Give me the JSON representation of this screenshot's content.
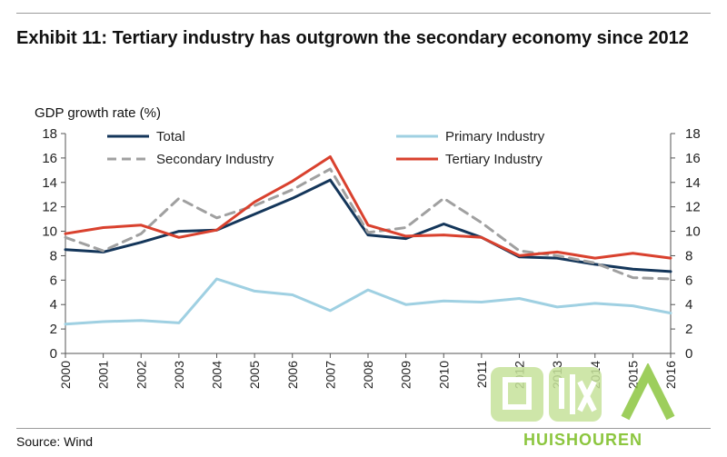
{
  "title": "Exhibit 11: Tertiary industry has outgrown the secondary economy since 2012",
  "source": "Source: Wind",
  "watermark_text": "HUISHOUREN",
  "chart_data": {
    "type": "line",
    "ylabel": "GDP growth rate (%)",
    "xlabel": "",
    "ylim": [
      0,
      18
    ],
    "y_ticks": [
      0,
      2,
      4,
      6,
      8,
      10,
      12,
      14,
      16,
      18
    ],
    "secondary_y_axis": true,
    "grid": false,
    "legend_position": "top",
    "categories": [
      "2000",
      "2001",
      "2002",
      "2003",
      "2004",
      "2005",
      "2006",
      "2007",
      "2008",
      "2009",
      "2010",
      "2011",
      "2012",
      "2013",
      "2014",
      "2015",
      "2016"
    ],
    "series": [
      {
        "name": "Total",
        "color": "#14365a",
        "dash": "solid",
        "values": [
          8.5,
          8.3,
          9.1,
          10.0,
          10.1,
          11.4,
          12.7,
          14.2,
          9.7,
          9.4,
          10.6,
          9.5,
          7.9,
          7.8,
          7.3,
          6.9,
          6.7
        ]
      },
      {
        "name": "Primary Industry",
        "color": "#9fd0e2",
        "dash": "solid",
        "values": [
          2.4,
          2.6,
          2.7,
          2.5,
          6.1,
          5.1,
          4.8,
          3.5,
          5.2,
          4.0,
          4.3,
          4.2,
          4.5,
          3.8,
          4.1,
          3.9,
          3.3
        ]
      },
      {
        "name": "Secondary Industry",
        "color": "#a0a0a0",
        "dash": "dashed",
        "values": [
          9.5,
          8.4,
          9.8,
          12.7,
          11.1,
          12.1,
          13.4,
          15.1,
          9.9,
          10.3,
          12.7,
          10.7,
          8.4,
          8.0,
          7.4,
          6.2,
          6.1
        ]
      },
      {
        "name": "Tertiary Industry",
        "color": "#d9412e",
        "dash": "solid",
        "values": [
          9.8,
          10.3,
          10.5,
          9.5,
          10.1,
          12.4,
          14.1,
          16.1,
          10.5,
          9.6,
          9.7,
          9.5,
          8.0,
          8.3,
          7.8,
          8.2,
          7.8
        ]
      }
    ]
  }
}
